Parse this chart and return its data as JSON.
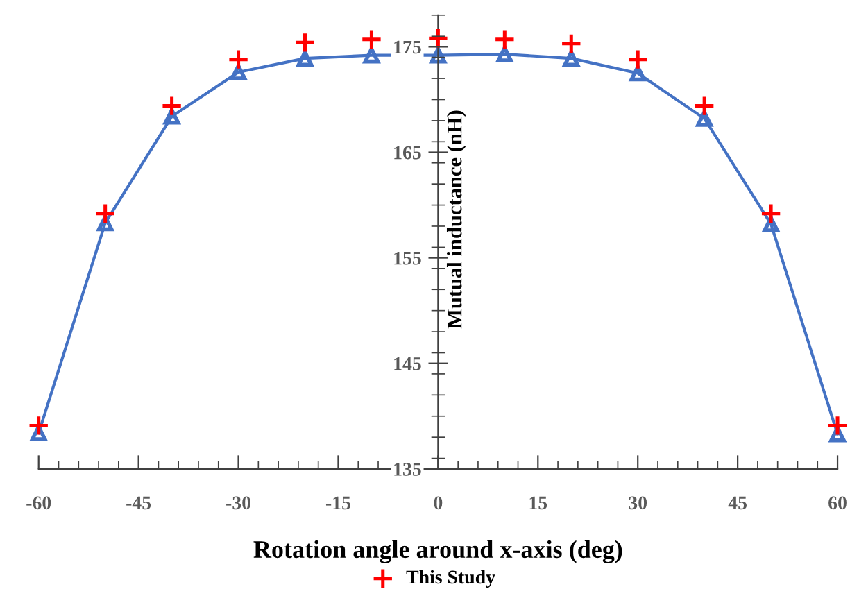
{
  "chart_data": {
    "type": "line",
    "xlabel": "Rotation angle around x-axis (deg)",
    "ylabel": "Mutual inductance (nH)",
    "x": [
      -60,
      -50,
      -40,
      -30,
      -20,
      -10,
      0,
      10,
      20,
      30,
      40,
      50,
      60
    ],
    "series": [
      {
        "color": "#4472c4",
        "marker": "triangle",
        "values": [
          138.4,
          158.3,
          168.4,
          172.6,
          173.9,
          174.2,
          174.2,
          174.3,
          173.9,
          172.5,
          168.2,
          158.2,
          138.3
        ]
      },
      {
        "name": "This Study",
        "color": "#ff0000",
        "type": "scatter",
        "marker": "cross",
        "values": [
          139.1,
          159.2,
          169.4,
          173.8,
          175.4,
          175.7,
          175.8,
          175.7,
          175.3,
          173.8,
          169.4,
          159.2,
          139.1
        ]
      }
    ],
    "xlim": [
      -60,
      60
    ],
    "ylim": [
      135,
      178
    ],
    "xticks": [
      -60,
      -45,
      -30,
      -15,
      0,
      15,
      30,
      45,
      60
    ],
    "yticks": [
      135,
      145,
      155,
      165,
      175
    ],
    "grid": false,
    "legend": "bottom"
  }
}
